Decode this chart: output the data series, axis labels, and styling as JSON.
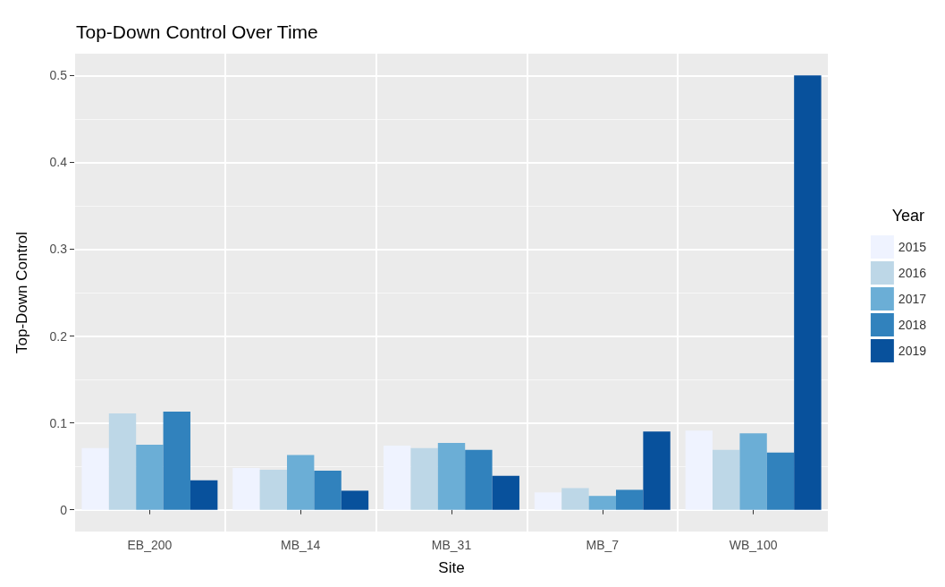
{
  "chart_data": {
    "type": "bar",
    "title": "Top-Down Control Over Time",
    "xlabel": "Site",
    "ylabel": "Top-Down Control",
    "legend_title": "Year",
    "categories": [
      "EB_200",
      "MB_14",
      "MB_31",
      "MB_7",
      "WB_100"
    ],
    "series": [
      {
        "name": "2015",
        "color": "#eff3ff",
        "values": [
          0.071,
          0.048,
          0.074,
          0.02,
          0.091
        ]
      },
      {
        "name": "2016",
        "color": "#bdd7e7",
        "values": [
          0.111,
          0.046,
          0.071,
          0.025,
          0.069
        ]
      },
      {
        "name": "2017",
        "color": "#6baed6",
        "values": [
          0.075,
          0.063,
          0.077,
          0.016,
          0.088
        ]
      },
      {
        "name": "2018",
        "color": "#3182bd",
        "values": [
          0.113,
          0.045,
          0.069,
          0.023,
          0.066
        ]
      },
      {
        "name": "2019",
        "color": "#08519c",
        "values": [
          0.034,
          0.022,
          0.039,
          0.09,
          0.5
        ]
      }
    ],
    "ylim": [
      -0.025,
      0.525
    ],
    "yticks": [
      0,
      0.1,
      0.2,
      0.3,
      0.4,
      0.5
    ],
    "grid": true,
    "legend": "right"
  }
}
